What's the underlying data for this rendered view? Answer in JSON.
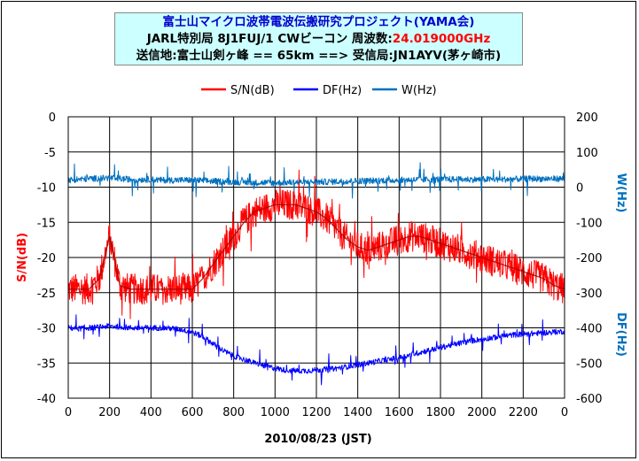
{
  "title": {
    "line1": "富士山マイクロ波帯電波伝搬研究プロジェクト(YAMA会)",
    "line2_prefix": "JARL特別局 8J1FUJ/1  CWビーコン 周波数:",
    "line2_freq": "24.019000GHz",
    "line3": "送信地:富士山剣ヶ峰 == 65km ==> 受信局:JN1AYV(茅ヶ崎市)"
  },
  "chart_data": {
    "type": "line",
    "xlabel": "2010/08/23 (JST)",
    "x_ticks": [
      "0",
      "200",
      "400",
      "600",
      "800",
      "1000",
      "1200",
      "1400",
      "1600",
      "1800",
      "2000",
      "2200",
      "0"
    ],
    "y_left": {
      "label": "S/N(dB)",
      "range": [
        -40,
        0
      ],
      "ticks": [
        "0",
        "-5",
        "-10",
        "-15",
        "-20",
        "-25",
        "-30",
        "-35",
        "-40"
      ]
    },
    "y_right": {
      "range": [
        -600,
        200
      ],
      "ticks": [
        "200",
        "100",
        "0",
        "-100",
        "-200",
        "-300",
        "-400",
        "-500",
        "-600"
      ],
      "label_upper": "W(Hz)",
      "label_lower": "DF(Hz)"
    },
    "grid": true,
    "legend_position": "top",
    "series": [
      {
        "name": "S/N(dB)",
        "axis": "left",
        "color": "#ff0000",
        "x": [
          0,
          50,
          100,
          150,
          200,
          250,
          300,
          350,
          400,
          450,
          500,
          550,
          600,
          650,
          700,
          750,
          800,
          850,
          900,
          950,
          1000,
          1050,
          1100,
          1150,
          1200,
          1250,
          1300,
          1350,
          1400,
          1450,
          1500,
          1550,
          1600,
          1650,
          1700,
          1750,
          1800,
          1850,
          1900,
          1950,
          2000,
          2050,
          2100,
          2150,
          2200,
          2250,
          2300,
          2350,
          2400
        ],
        "values": [
          -24.5,
          -24.5,
          -24.5,
          -23,
          -17,
          -24,
          -24.5,
          -24.5,
          -24.5,
          -24.5,
          -24.5,
          -24.5,
          -24.5,
          -23,
          -21,
          -19,
          -17,
          -15,
          -13.5,
          -13,
          -12.5,
          -12.5,
          -12.5,
          -13,
          -13.5,
          -14.5,
          -16,
          -17.5,
          -18.5,
          -19,
          -18.5,
          -18,
          -17.5,
          -17,
          -17,
          -17.5,
          -18,
          -18.5,
          -19,
          -19.5,
          -20,
          -20.5,
          -21,
          -21.5,
          -22,
          -22.5,
          -23,
          -24,
          -24.5
        ]
      },
      {
        "name": "DF(Hz)",
        "axis": "right",
        "color": "#0000ff",
        "x": [
          0,
          50,
          100,
          150,
          200,
          250,
          300,
          350,
          400,
          450,
          500,
          550,
          600,
          650,
          700,
          750,
          800,
          850,
          900,
          950,
          1000,
          1050,
          1100,
          1150,
          1200,
          1250,
          1300,
          1350,
          1400,
          1450,
          1500,
          1550,
          1600,
          1650,
          1700,
          1750,
          1800,
          1850,
          1900,
          1950,
          2000,
          2050,
          2100,
          2150,
          2200,
          2250,
          2300,
          2350,
          2400
        ],
        "values": [
          -400,
          -402,
          -400,
          -398,
          -395,
          -397,
          -400,
          -400,
          -400,
          -400,
          -402,
          -405,
          -412,
          -425,
          -445,
          -465,
          -480,
          -490,
          -500,
          -508,
          -515,
          -520,
          -522,
          -522,
          -520,
          -518,
          -515,
          -510,
          -505,
          -500,
          -495,
          -490,
          -485,
          -478,
          -470,
          -463,
          -456,
          -449,
          -443,
          -437,
          -432,
          -428,
          -424,
          -420,
          -418,
          -416,
          -414,
          -412,
          -410
        ]
      },
      {
        "name": "W(Hz)",
        "axis": "right",
        "color": "#0070c0",
        "x": [
          0,
          50,
          100,
          150,
          200,
          250,
          300,
          350,
          400,
          450,
          500,
          550,
          600,
          650,
          700,
          750,
          800,
          850,
          900,
          950,
          1000,
          1050,
          1100,
          1150,
          1200,
          1250,
          1300,
          1350,
          1400,
          1450,
          1500,
          1550,
          1600,
          1650,
          1700,
          1750,
          1800,
          1850,
          1900,
          1950,
          2000,
          2050,
          2100,
          2150,
          2200,
          2250,
          2300,
          2350,
          2400
        ],
        "values": [
          20,
          22,
          24,
          25,
          26,
          24,
          22,
          22,
          22,
          20,
          20,
          20,
          20,
          18,
          17,
          16,
          15,
          14,
          13,
          13,
          12,
          13,
          14,
          14,
          15,
          15,
          16,
          17,
          18,
          18,
          19,
          20,
          20,
          21,
          21,
          22,
          22,
          22,
          22,
          22,
          22,
          22,
          22,
          23,
          23,
          24,
          24,
          24,
          24
        ]
      }
    ]
  },
  "colors": {
    "title_bg": "#ccffff",
    "title_blue": "#0000cc",
    "freq_red": "#ff0000",
    "left_axis_label": "#ff0000",
    "right_axis_label": "#0070c0"
  }
}
